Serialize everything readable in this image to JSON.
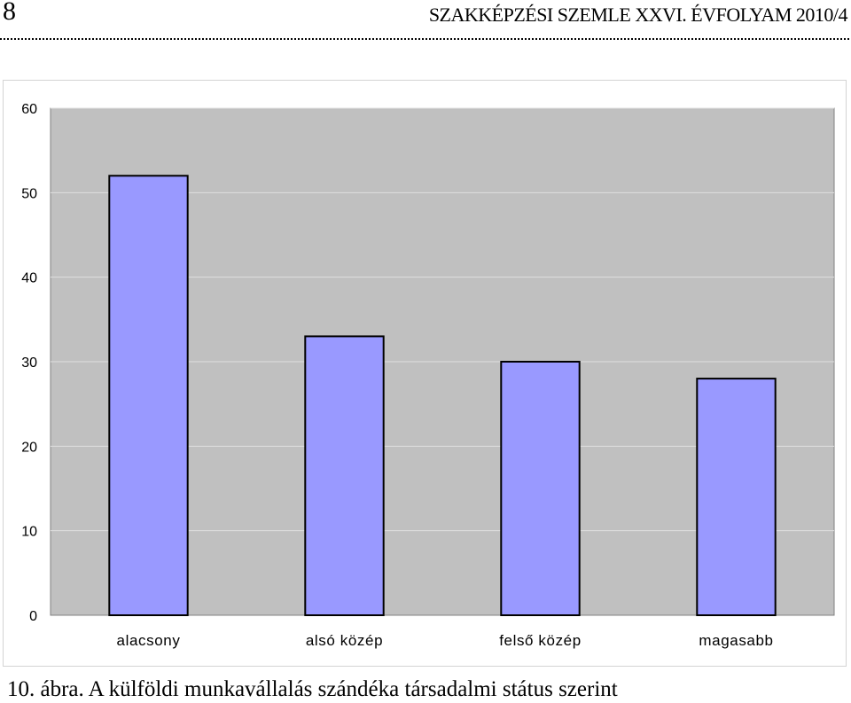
{
  "header": {
    "page_number": "8",
    "running_title": "SZAKKÉPZÉSI SZEMLE XXVI. ÉVFOLYAM 2010/4"
  },
  "figure": {
    "number_label": "10. ábra.",
    "caption": "A külföldi munkavállalás szándéka társadalmi státus szerint"
  },
  "chart_data": {
    "type": "bar",
    "categories": [
      "alacsony",
      "alsó közép",
      "felső közép",
      "magasabb"
    ],
    "values": [
      52,
      33,
      30,
      28
    ],
    "ylim": [
      0,
      60
    ],
    "yticks": [
      0,
      10,
      20,
      30,
      40,
      50,
      60
    ],
    "grid": true,
    "legend": false,
    "colors": {
      "bar_fill": "#9999ff",
      "bar_stroke": "#000000",
      "plot_background": "#c0c0c0",
      "gridline": "#e0e0e0"
    }
  }
}
